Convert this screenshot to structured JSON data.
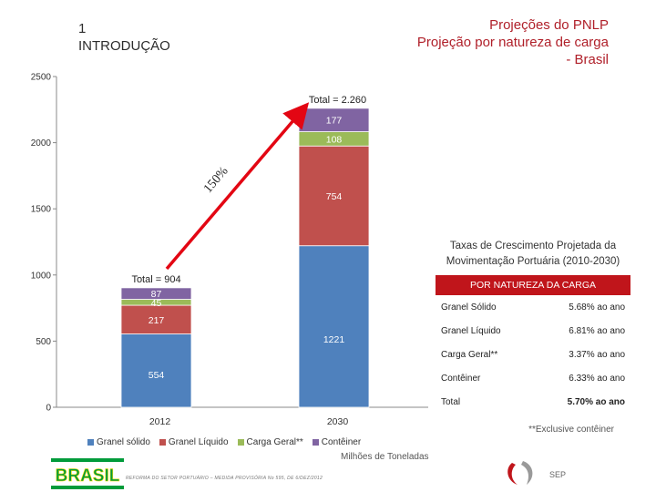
{
  "header": {
    "section": "1\nINTRODUÇÃO",
    "title_line1": "Projeções do PNLP",
    "title_line2": "Projeção por natureza de carga",
    "title_line3": "- Brasil"
  },
  "chart_data": {
    "type": "bar",
    "stacked": true,
    "categories": [
      "2012",
      "2030"
    ],
    "series": [
      {
        "name": "Granel sólido",
        "color": "#4f81bd",
        "values": [
          554,
          1221
        ]
      },
      {
        "name": "Granel Líquido",
        "color": "#c0504d",
        "values": [
          217,
          754
        ]
      },
      {
        "name": "Carga Geral**",
        "color": "#9bbb59",
        "values": [
          45,
          108
        ]
      },
      {
        "name": "Contêiner",
        "color": "#8064a2",
        "values": [
          87,
          177
        ]
      }
    ],
    "totals": [
      "Total = 904",
      "Total = 2.260"
    ],
    "growth_annotation": "150%",
    "yticks": [
      0,
      500,
      1000,
      1500,
      2000,
      2500
    ],
    "ylim": [
      0,
      2500
    ],
    "xlabel": "Milhões de Toneladas",
    "legend_position": "bottom",
    "grid": false
  },
  "rates": {
    "heading": "Taxas de Crescimento Projetada da Movimentação Portuária (2010-2030)",
    "table_header": "POR NATUREZA DA CARGA",
    "rows": [
      {
        "label": "Granel Sólido",
        "value": "5.68% ao ano"
      },
      {
        "label": "Granel Líquido",
        "value": "6.81% ao ano"
      },
      {
        "label": "Carga Geral**",
        "value": "3.37% ao ano"
      },
      {
        "label": "Contêiner",
        "value": "6.33% ao ano"
      },
      {
        "label": "Total",
        "value": "5.70% ao ano"
      }
    ],
    "note": "**Exclusive contêiner"
  },
  "footer": {
    "logo_text": "BRASIL",
    "text": "REFORMA DO SETOR PORTUÁRIO – MEDIDA PROVISÓRIA No 595, DE 6/DEZ/2012",
    "emblem_text": "SEP"
  }
}
